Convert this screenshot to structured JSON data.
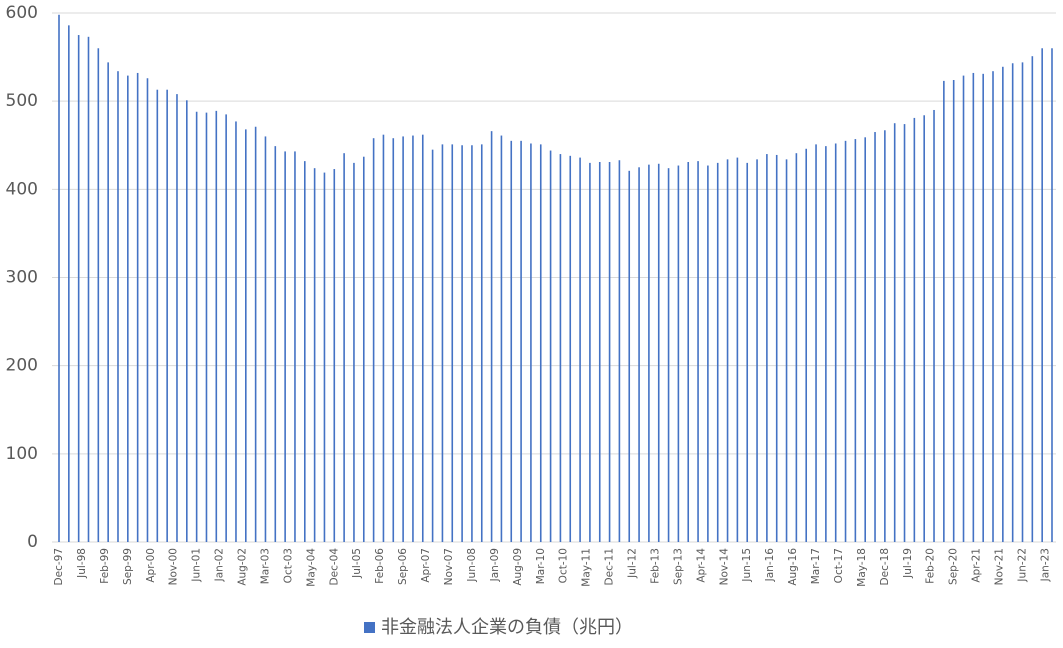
{
  "chart_data": {
    "type": "bar",
    "color": "#4472c4",
    "grid": true,
    "legend": "bottom",
    "ylim": [
      0,
      600
    ],
    "yticks": [
      0,
      100,
      200,
      300,
      400,
      500,
      600
    ],
    "xticks": [
      "Dec-97",
      "Jul-98",
      "Feb-99",
      "Sep-99",
      "Apr-00",
      "Nov-00",
      "Jun-01",
      "Jan-02",
      "Aug-02",
      "Mar-03",
      "Oct-03",
      "May-04",
      "Dec-04",
      "Jul-05",
      "Feb-06",
      "Sep-06",
      "Apr-07",
      "Nov-07",
      "Jun-08",
      "Jan-09",
      "Aug-09",
      "Mar-10",
      "Oct-10",
      "May-11",
      "Dec-11",
      "Jul-12",
      "Feb-13",
      "Sep-13",
      "Apr-14",
      "Nov-14",
      "Jun-15",
      "Jan-16",
      "Aug-16",
      "Mar-17",
      "Oct-17",
      "May-18",
      "Dec-18",
      "Jul-19",
      "Feb-20",
      "Sep-20",
      "Apr-21",
      "Nov-21",
      "Jun-22",
      "Jan-23"
    ],
    "x_start": "Dec-97",
    "x_step_months": 3,
    "series": [
      {
        "name": "非金融法人企業の負債（兆円）",
        "color": "#4472c4",
        "values": [
          598,
          586,
          575,
          573,
          560,
          544,
          534,
          529,
          532,
          526,
          513,
          513,
          508,
          501,
          488,
          487,
          489,
          485,
          477,
          468,
          471,
          460,
          449,
          443,
          443,
          432,
          424,
          419,
          423,
          441,
          430,
          437,
          458,
          462,
          458,
          460,
          461,
          462,
          445,
          451,
          451,
          450,
          450,
          451,
          466,
          461,
          455,
          455,
          452,
          451,
          444,
          440,
          438,
          436,
          430,
          431,
          431,
          433,
          421,
          425,
          428,
          429,
          424,
          427,
          431,
          432,
          427,
          430,
          434,
          436,
          430,
          434,
          440,
          439,
          434,
          441,
          446,
          451,
          449,
          452,
          455,
          457,
          459,
          465,
          467,
          475,
          474,
          481,
          484,
          490,
          523,
          524,
          529,
          532,
          531,
          534,
          539,
          543,
          544,
          551,
          560,
          560
        ]
      }
    ]
  }
}
